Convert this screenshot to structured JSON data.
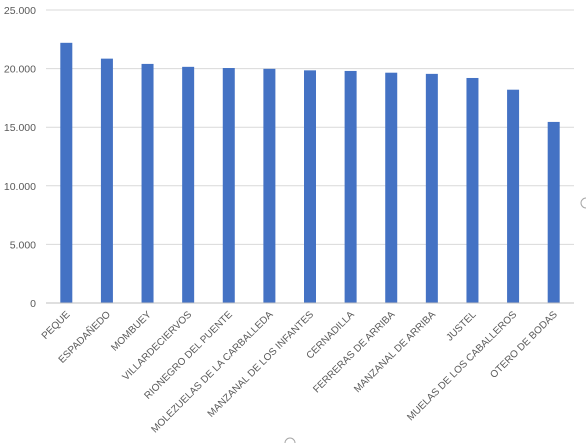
{
  "chart_data": {
    "type": "bar",
    "title": "",
    "xlabel": "",
    "ylabel": "",
    "categories": [
      "PEQUE",
      "ESPADAÑEDO",
      "MOMBUEY",
      "VILLARDECIERVOS",
      "RIONEGRO DEL PUENTE",
      "MOLEZUELAS DE LA CARBALLEDA",
      "MANZANAL DE LOS INFANTES",
      "CERNADILLA",
      "FERRERAS DE ARRIBA",
      "MANZANAL DE ARRIBA",
      "JUSTEL",
      "MUELAS DE LOS CABALLEROS",
      "OTERO DE BODAS"
    ],
    "values": [
      22200,
      20850,
      20400,
      20150,
      20050,
      19980,
      19850,
      19800,
      19650,
      19550,
      19200,
      18200,
      15450
    ],
    "ylim": [
      0,
      25000
    ],
    "yticks": [
      0,
      5000,
      10000,
      15000,
      20000,
      25000
    ],
    "ytick_labels": [
      "0",
      "5.000",
      "10.000",
      "15.000",
      "20.000",
      "25.000"
    ],
    "grid": true,
    "legend": "none",
    "bar_color": "#4472c4"
  }
}
